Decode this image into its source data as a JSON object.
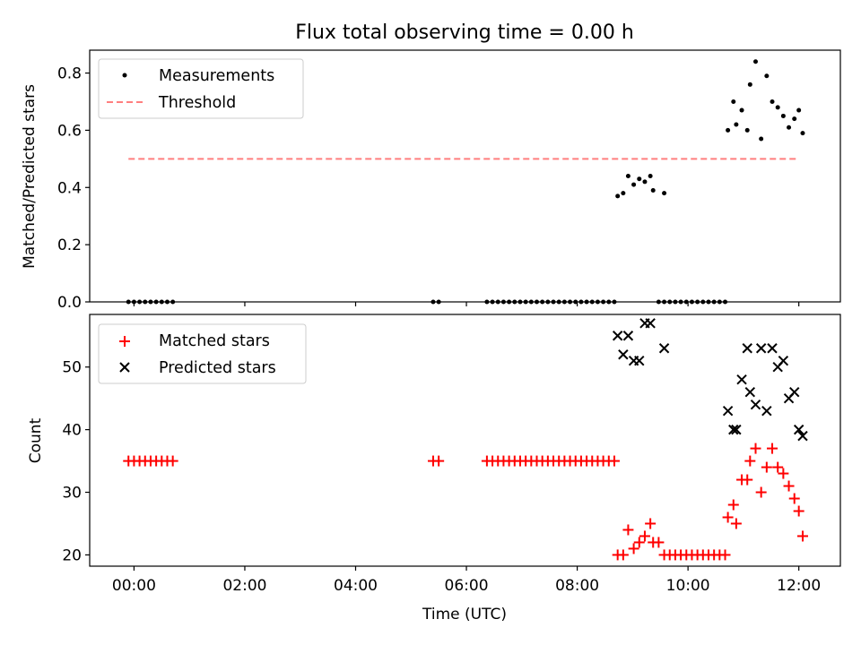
{
  "chart_data": [
    {
      "type": "scatter",
      "title": "Flux total observing time = 0.00 h",
      "xlabel": "",
      "ylabel": "Matched/Predicted stars",
      "xlim": [
        -0.8,
        12.75
      ],
      "ylim": [
        0.0,
        0.88
      ],
      "yticks": [
        0.0,
        0.2,
        0.4,
        0.6,
        0.8
      ],
      "ytick_labels": [
        "0.0",
        "0.2",
        "0.4",
        "0.6",
        "0.8"
      ],
      "xticks": [
        0,
        2,
        4,
        6,
        8,
        10,
        12
      ],
      "grid": false,
      "legend_position": "upper-left",
      "series": [
        {
          "name": "Measurements",
          "marker": "dot",
          "color": "#000000",
          "x": [
            -0.1,
            0.0,
            0.1,
            0.2,
            0.3,
            0.4,
            0.5,
            0.6,
            0.7,
            5.4,
            5.5,
            6.37,
            6.47,
            6.57,
            6.67,
            6.77,
            6.87,
            6.97,
            7.07,
            7.17,
            7.27,
            7.37,
            7.47,
            7.57,
            7.67,
            7.77,
            7.87,
            7.97,
            8.07,
            8.17,
            8.27,
            8.37,
            8.47,
            8.57,
            8.67,
            8.73,
            8.83,
            8.92,
            9.02,
            9.12,
            9.22,
            9.32,
            9.37,
            9.47,
            9.57,
            9.57,
            9.67,
            9.77,
            9.87,
            9.97,
            10.07,
            10.17,
            10.27,
            10.37,
            10.47,
            10.57,
            10.67,
            10.72,
            10.82,
            10.87,
            10.97,
            11.07,
            11.12,
            11.22,
            11.32,
            11.42,
            11.52,
            11.62,
            11.72,
            11.82,
            11.92,
            12.0,
            12.07
          ],
          "y": [
            0,
            0,
            0,
            0,
            0,
            0,
            0,
            0,
            0,
            0,
            0,
            0,
            0,
            0,
            0,
            0,
            0,
            0,
            0,
            0,
            0,
            0,
            0,
            0,
            0,
            0,
            0,
            0,
            0,
            0,
            0,
            0,
            0,
            0,
            0,
            0.37,
            0.38,
            0.44,
            0.41,
            0.43,
            0.42,
            0.44,
            0.39,
            0,
            0,
            0.38,
            0,
            0,
            0,
            0,
            0,
            0,
            0,
            0,
            0,
            0,
            0,
            0.6,
            0.7,
            0.62,
            0.67,
            0.6,
            0.76,
            0.84,
            0.57,
            0.79,
            0.7,
            0.68,
            0.65,
            0.61,
            0.64,
            0.67,
            0.59
          ]
        },
        {
          "name": "Threshold",
          "style": "dashed",
          "color": "#ff7f7f",
          "x": [
            -0.1,
            12.0
          ],
          "y": [
            0.5,
            0.5
          ]
        }
      ]
    },
    {
      "type": "scatter",
      "title": "",
      "xlabel": "Time (UTC)",
      "ylabel": "Count",
      "xlim": [
        -0.8,
        12.75
      ],
      "ylim": [
        18.2,
        58.4
      ],
      "yticks": [
        20,
        30,
        40,
        50
      ],
      "ytick_labels": [
        "20",
        "30",
        "40",
        "50"
      ],
      "xticks": [
        0,
        2,
        4,
        6,
        8,
        10,
        12
      ],
      "xtick_labels": [
        "00:00",
        "02:00",
        "04:00",
        "06:00",
        "08:00",
        "10:00",
        "12:00"
      ],
      "grid": false,
      "legend_position": "upper-left",
      "series": [
        {
          "name": "Matched stars",
          "marker": "plus",
          "color": "#ff0000",
          "x": [
            -0.1,
            0.0,
            0.1,
            0.2,
            0.3,
            0.4,
            0.5,
            0.6,
            0.7,
            5.4,
            5.5,
            6.37,
            6.47,
            6.57,
            6.67,
            6.77,
            6.87,
            6.97,
            7.07,
            7.17,
            7.27,
            7.37,
            7.47,
            7.57,
            7.67,
            7.77,
            7.87,
            7.97,
            8.07,
            8.17,
            8.27,
            8.37,
            8.47,
            8.57,
            8.67,
            8.73,
            8.83,
            8.92,
            9.02,
            9.12,
            9.22,
            9.32,
            9.37,
            9.47,
            9.57,
            9.67,
            9.77,
            9.87,
            9.97,
            10.07,
            10.17,
            10.27,
            10.37,
            10.47,
            10.57,
            10.67,
            10.72,
            10.82,
            10.87,
            10.97,
            11.07,
            11.12,
            11.22,
            11.32,
            11.42,
            11.52,
            11.62,
            11.72,
            11.82,
            11.92,
            12.0,
            12.07
          ],
          "y": [
            35,
            35,
            35,
            35,
            35,
            35,
            35,
            35,
            35,
            35,
            35,
            35,
            35,
            35,
            35,
            35,
            35,
            35,
            35,
            35,
            35,
            35,
            35,
            35,
            35,
            35,
            35,
            35,
            35,
            35,
            35,
            35,
            35,
            35,
            35,
            20,
            20,
            24,
            21,
            22,
            23,
            25,
            22,
            22,
            20,
            20,
            20,
            20,
            20,
            20,
            20,
            20,
            20,
            20,
            20,
            20,
            26,
            28,
            25,
            32,
            32,
            35,
            37,
            30,
            34,
            37,
            34,
            33,
            31,
            29,
            27,
            23
          ]
        },
        {
          "name": "Predicted stars",
          "marker": "x",
          "color": "#000000",
          "x": [
            8.73,
            8.83,
            8.92,
            9.02,
            9.12,
            9.22,
            9.32,
            9.57,
            10.72,
            10.82,
            10.87,
            10.97,
            11.07,
            11.12,
            11.22,
            11.32,
            11.42,
            11.52,
            11.62,
            11.72,
            11.82,
            11.92,
            12.0,
            12.07
          ],
          "y": [
            55,
            52,
            55,
            51,
            51,
            57,
            57,
            53,
            43,
            40,
            40,
            48,
            53,
            46,
            44,
            53,
            43,
            53,
            50,
            51,
            45,
            46,
            40,
            39
          ]
        }
      ]
    }
  ]
}
